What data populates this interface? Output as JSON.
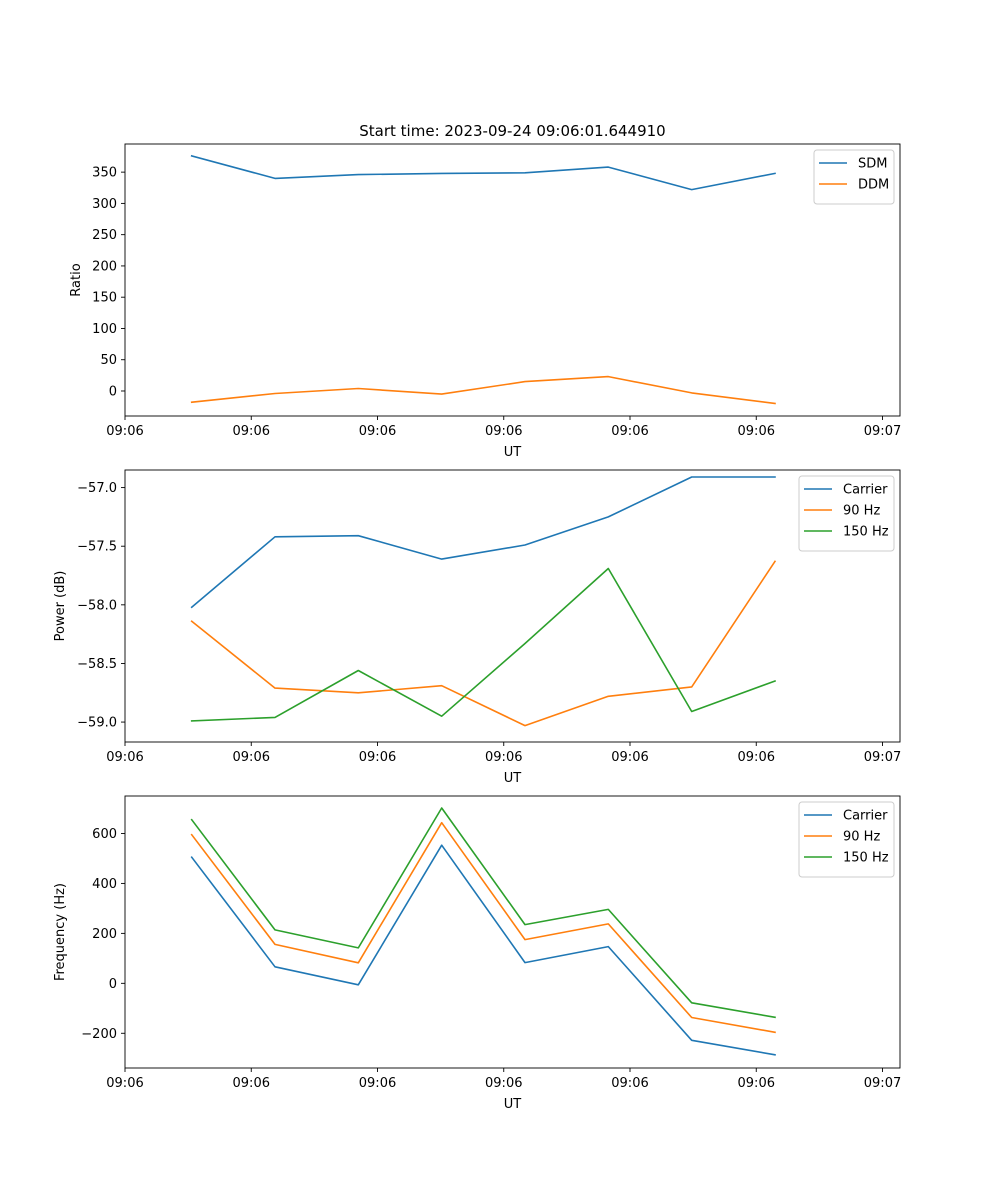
{
  "figure": {
    "title": "Start time: 2023-09-24 09:06:01.644910",
    "colors": {
      "blue": "#1f77b4",
      "orange": "#ff7f0e",
      "green": "#2ca02c"
    }
  },
  "chart_data": [
    {
      "type": "line",
      "title": "Start time: 2023-09-24 09:06:01.644910",
      "xlabel": "UT",
      "ylabel": "Ratio",
      "x": [
        1,
        2,
        3,
        4,
        5,
        6,
        7,
        8
      ],
      "xlim": [
        0.2,
        9.5
      ],
      "xticks": [
        0.2,
        1.715,
        3.23,
        4.745,
        6.26,
        7.775,
        9.29
      ],
      "xtick_labels": [
        "09:06",
        "09:06",
        "09:06",
        "09:06",
        "09:06",
        "09:06",
        "09:07"
      ],
      "ylim": [
        -40,
        395
      ],
      "yticks": [
        0,
        50,
        100,
        150,
        200,
        250,
        300,
        350
      ],
      "ytick_labels": [
        "0",
        "50",
        "100",
        "150",
        "200",
        "250",
        "300",
        "350"
      ],
      "legend": "top-right",
      "series": [
        {
          "name": "SDM",
          "color": "#1f77b4",
          "values": [
            376,
            340,
            346,
            348,
            349,
            358,
            322,
            348
          ]
        },
        {
          "name": "DDM",
          "color": "#ff7f0e",
          "values": [
            -18,
            -4,
            4,
            -5,
            15,
            23,
            -3,
            -20
          ]
        }
      ]
    },
    {
      "type": "line",
      "xlabel": "UT",
      "ylabel": "Power (dB)",
      "x": [
        1,
        2,
        3,
        4,
        5,
        6,
        7,
        8
      ],
      "xlim": [
        0.2,
        9.5
      ],
      "xticks": [
        0.2,
        1.715,
        3.23,
        4.745,
        6.26,
        7.775,
        9.29
      ],
      "xtick_labels": [
        "09:06",
        "09:06",
        "09:06",
        "09:06",
        "09:06",
        "09:06",
        "09:07"
      ],
      "ylim": [
        -59.17,
        -56.85
      ],
      "yticks": [
        -59.0,
        -58.5,
        -58.0,
        -57.5,
        -57.0
      ],
      "ytick_labels": [
        "−59.0",
        "−58.5",
        "−58.0",
        "−57.5",
        "−57.0"
      ],
      "legend": "top-right",
      "series": [
        {
          "name": "Carrier",
          "color": "#1f77b4",
          "values": [
            -58.02,
            -57.42,
            -57.41,
            -57.61,
            -57.49,
            -57.25,
            -56.91,
            -56.91
          ]
        },
        {
          "name": "90 Hz",
          "color": "#ff7f0e",
          "values": [
            -58.14,
            -58.71,
            -58.75,
            -58.69,
            -59.03,
            -58.78,
            -58.7,
            -57.63
          ]
        },
        {
          "name": "150 Hz",
          "color": "#2ca02c",
          "values": [
            -58.99,
            -58.96,
            -58.56,
            -58.95,
            -58.33,
            -57.69,
            -58.91,
            -58.65
          ]
        }
      ]
    },
    {
      "type": "line",
      "xlabel": "UT",
      "ylabel": "Frequency (Hz)",
      "x": [
        1,
        2,
        3,
        4,
        5,
        6,
        7,
        8
      ],
      "xlim": [
        0.2,
        9.5
      ],
      "xticks": [
        0.2,
        1.715,
        3.23,
        4.745,
        6.26,
        7.775,
        9.29
      ],
      "xtick_labels": [
        "09:06",
        "09:06",
        "09:06",
        "09:06",
        "09:06",
        "09:06",
        "09:07"
      ],
      "ylim": [
        -339,
        750
      ],
      "yticks": [
        -200,
        0,
        200,
        400,
        600
      ],
      "ytick_labels": [
        "−200",
        "0",
        "200",
        "400",
        "600"
      ],
      "legend": "top-right",
      "series": [
        {
          "name": "Carrier",
          "color": "#1f77b4",
          "values": [
            505,
            66,
            -6,
            553,
            83,
            147,
            -228,
            -286
          ]
        },
        {
          "name": "90 Hz",
          "color": "#ff7f0e",
          "values": [
            595,
            156,
            82,
            643,
            175,
            238,
            -137,
            -196
          ]
        },
        {
          "name": "150 Hz",
          "color": "#2ca02c",
          "values": [
            655,
            214,
            142,
            702,
            235,
            296,
            -78,
            -136
          ]
        }
      ]
    }
  ]
}
